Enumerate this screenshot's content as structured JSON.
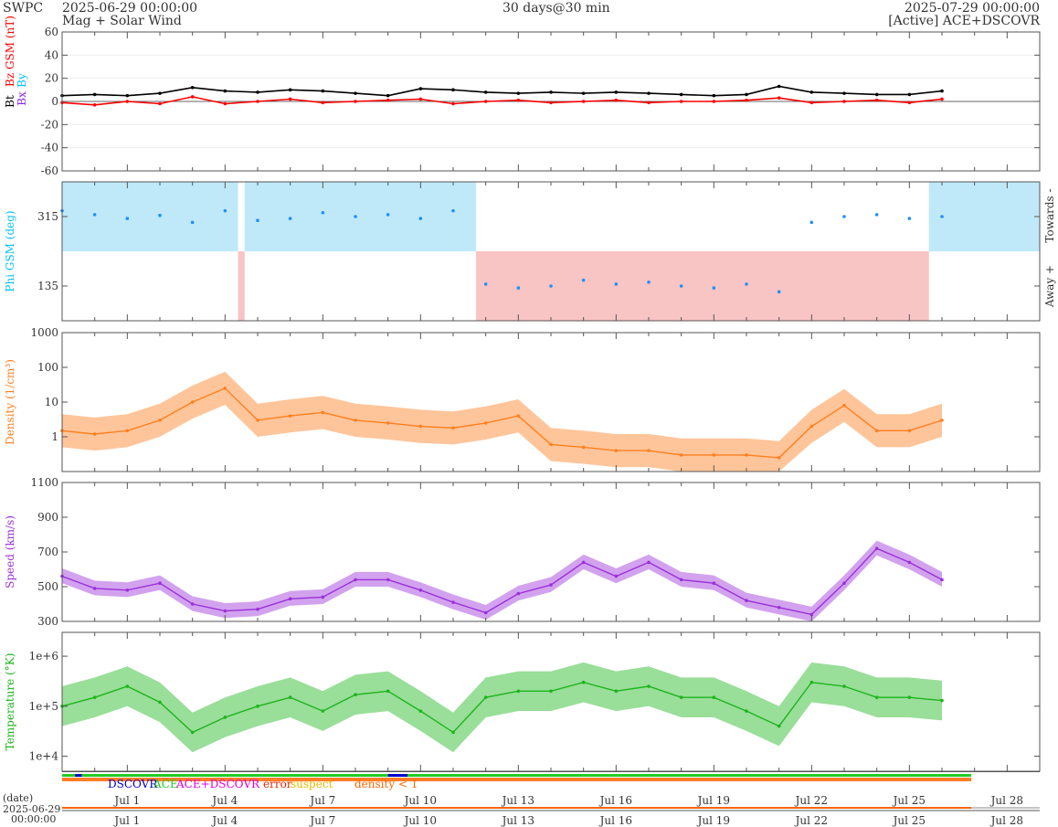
{
  "header": {
    "brand": "SWPC",
    "start_datetime": "2025-06-29 00:00:00",
    "subtitle": "Mag + Solar Wind",
    "center": "30 days@30 min",
    "end_datetime": "2025-07-29 00:00:00",
    "source": "[Active] ACE+DSCOVR"
  },
  "colors": {
    "bt": "#000000",
    "bz": "#ff0000",
    "bx": "#8a2be2",
    "by": "#00bfff",
    "towards": "#bfe9f9",
    "away": "#f9c4c4",
    "density": "#ff7f1e",
    "speed": "#9b30d9",
    "temperature": "#1cb51c",
    "dscovr": "#0000cc",
    "ace": "#22cc22",
    "ace_dscovr": "#e000e0",
    "error": "#ee2200",
    "suspect": "#e6b800",
    "density_lt1": "#ff6600"
  },
  "chart_data": [
    {
      "type": "line",
      "panel": "mag",
      "ylabel_parts": [
        "Bt",
        "Bz GSM (nT)",
        "Bx",
        "By"
      ],
      "ylim": [
        -60,
        60
      ],
      "yticks": [
        "60",
        "40",
        "20",
        "0",
        "-20",
        "-40",
        "-60"
      ],
      "x_days": [
        0,
        1,
        2,
        3,
        4,
        5,
        6,
        7,
        8,
        9,
        10,
        11,
        12,
        13,
        14,
        15,
        16,
        17,
        18,
        19,
        20,
        21,
        22,
        23,
        24,
        25,
        26,
        27
      ],
      "series": [
        {
          "name": "Bt",
          "values": [
            5,
            6,
            5,
            7,
            12,
            9,
            8,
            10,
            9,
            7,
            5,
            11,
            10,
            8,
            7,
            8,
            7,
            8,
            7,
            6,
            5,
            6,
            13,
            8,
            7,
            6,
            6,
            9
          ]
        },
        {
          "name": "Bz",
          "values": [
            -1,
            -3,
            0,
            -2,
            4,
            -2,
            0,
            2,
            -1,
            0,
            1,
            2,
            -2,
            0,
            1,
            -1,
            0,
            1,
            -1,
            0,
            0,
            1,
            3,
            -1,
            0,
            1,
            -1,
            2
          ]
        }
      ]
    },
    {
      "type": "scatter",
      "panel": "phi",
      "ylabel": "Phi GSM (deg)",
      "ylim": [
        45,
        405
      ],
      "yticks": [
        "315",
        "135"
      ],
      "right_labels": [
        "Towards -",
        "Away +"
      ],
      "sectors": [
        {
          "sector": "towards",
          "start": 0,
          "end": 5.4
        },
        {
          "sector": "away",
          "start": 5.4,
          "end": 5.6
        },
        {
          "sector": "towards",
          "start": 5.6,
          "end": 12.7
        },
        {
          "sector": "away",
          "start": 12.7,
          "end": 26.6
        },
        {
          "sector": "towards",
          "start": 26.6,
          "end": 30.8
        }
      ],
      "x_days": [
        0,
        1,
        2,
        3,
        4,
        5,
        6,
        7,
        8,
        9,
        10,
        11,
        12,
        13,
        14,
        15,
        16,
        17,
        18,
        19,
        20,
        21,
        22,
        23,
        24,
        25,
        26,
        27
      ],
      "values": [
        330,
        320,
        310,
        318,
        300,
        330,
        305,
        310,
        325,
        315,
        320,
        310,
        330,
        140,
        130,
        135,
        150,
        140,
        145,
        135,
        130,
        140,
        120,
        300,
        315,
        320,
        310,
        315
      ]
    },
    {
      "type": "area",
      "panel": "density",
      "ylabel": "Density (1/cm³)",
      "yscale": "log",
      "ylim": [
        0.1,
        1000
      ],
      "yticks": [
        "1000",
        "100",
        "10",
        "1"
      ],
      "x_days": [
        0,
        1,
        2,
        3,
        4,
        5,
        6,
        7,
        8,
        9,
        10,
        11,
        12,
        13,
        14,
        15,
        16,
        17,
        18,
        19,
        20,
        21,
        22,
        23,
        24,
        25,
        26,
        27
      ],
      "values": [
        1.5,
        1.2,
        1.5,
        3,
        10,
        25,
        3,
        4,
        5,
        3,
        2.5,
        2,
        1.8,
        2.5,
        4,
        0.6,
        0.5,
        0.4,
        0.4,
        0.3,
        0.3,
        0.3,
        0.25,
        2,
        8,
        1.5,
        1.5,
        3
      ]
    },
    {
      "type": "area",
      "panel": "speed",
      "ylabel": "Speed (km/s)",
      "ylim": [
        300,
        1100
      ],
      "yticks": [
        "1100",
        "900",
        "700",
        "500",
        "300"
      ],
      "x_days": [
        0,
        1,
        2,
        3,
        4,
        5,
        6,
        7,
        8,
        9,
        10,
        11,
        12,
        13,
        14,
        15,
        16,
        17,
        18,
        19,
        20,
        21,
        22,
        23,
        24,
        25,
        26,
        27
      ],
      "values": [
        560,
        490,
        480,
        520,
        400,
        360,
        370,
        430,
        440,
        540,
        540,
        480,
        410,
        350,
        460,
        510,
        640,
        560,
        640,
        540,
        520,
        420,
        380,
        340,
        520,
        720,
        640,
        540
      ]
    },
    {
      "type": "area",
      "panel": "temperature",
      "ylabel": "Temperature (°K)",
      "yscale": "log",
      "ylim": [
        5000,
        3000000
      ],
      "yticks": [
        "1e+6",
        "1e+5",
        "1e+4"
      ],
      "x_days": [
        0,
        1,
        2,
        3,
        4,
        5,
        6,
        7,
        8,
        9,
        10,
        11,
        12,
        13,
        14,
        15,
        16,
        17,
        18,
        19,
        20,
        21,
        22,
        23,
        24,
        25,
        26,
        27
      ],
      "values": [
        100000,
        150000,
        250000,
        120000,
        30000,
        60000,
        100000,
        150000,
        80000,
        170000,
        200000,
        80000,
        30000,
        150000,
        200000,
        200000,
        300000,
        200000,
        250000,
        150000,
        150000,
        80000,
        40000,
        300000,
        250000,
        150000,
        150000,
        130000
      ]
    }
  ],
  "legend": [
    "DSCOVR",
    "ACE",
    "ACE+DSCOVR",
    "error",
    "suspect",
    "density < 1"
  ],
  "x_tick_labels": [
    "Jul 1",
    "Jul 4",
    "Jul 7",
    "Jul 10",
    "Jul 13",
    "Jul 16",
    "Jul 19",
    "Jul 22",
    "Jul 25",
    "Jul 28"
  ],
  "x_tick_days": [
    2,
    5,
    8,
    11,
    14,
    17,
    20,
    23,
    26,
    29
  ],
  "x_range_days": [
    0,
    30
  ],
  "date_caption": "(date)",
  "bottom_date": "2025-06-29",
  "bottom_time": "00:00:00"
}
